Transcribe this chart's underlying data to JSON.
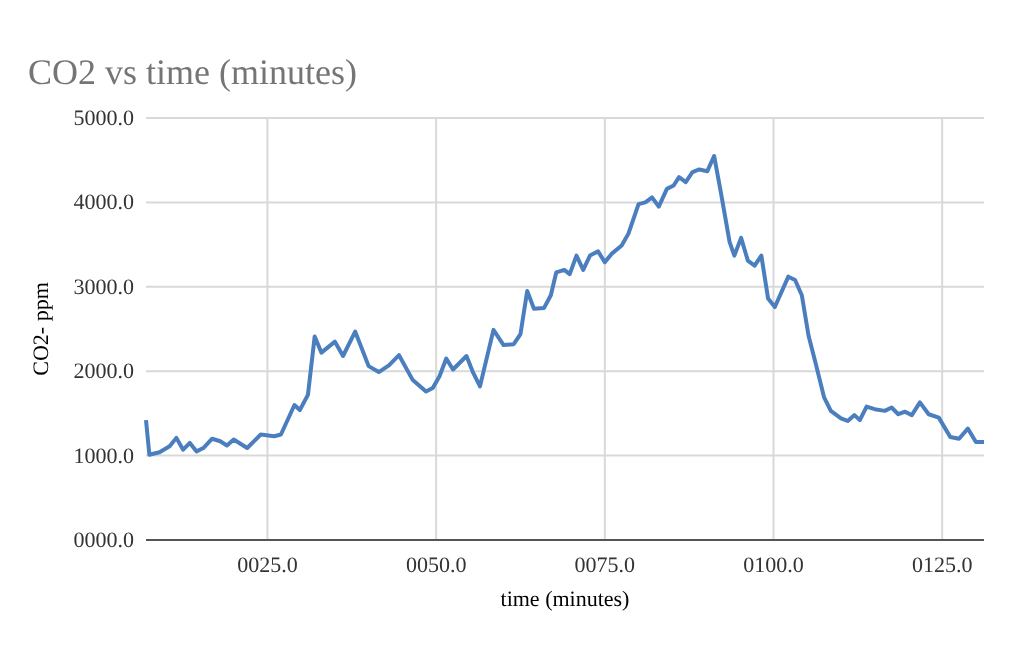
{
  "chart_data": {
    "type": "line",
    "title": "CO2 vs time (minutes)",
    "xlabel": "time (minutes)",
    "ylabel": "CO2- ppm",
    "x": [
      7,
      7.5,
      9,
      10.5,
      11.5,
      12.5,
      13.5,
      14.5,
      15.5,
      16.8,
      18,
      19,
      20,
      22,
      24,
      26,
      27,
      29,
      29.8,
      31,
      32,
      33,
      35,
      36.2,
      38,
      40,
      41.5,
      43,
      44.5,
      46.5,
      48.5,
      49.5,
      50.5,
      51.5,
      52.5,
      54.5,
      55.5,
      56.5,
      58.5,
      60,
      61.5,
      62.5,
      63.5,
      64.5,
      66,
      67,
      67.8,
      69,
      69.8,
      70.8,
      71.8,
      72.8,
      74,
      75,
      76,
      77.5,
      78.5,
      80,
      81,
      82,
      83,
      84.2,
      85.2,
      86,
      87,
      88,
      89,
      90.2,
      91.2,
      92.2,
      93.5,
      94.2,
      95.2,
      96.2,
      97.2,
      98.2,
      99.2,
      100.2,
      102.2,
      103.2,
      104.2,
      105.2,
      106.2,
      107.5,
      108.5,
      110,
      111,
      112,
      112.8,
      113.8,
      115,
      116.5,
      117.5,
      118.5,
      119.5,
      120.5,
      121.7,
      123,
      124.5,
      126.2,
      127.5,
      128.8,
      130,
      131.2
    ],
    "series": [
      {
        "color": "#4a7ebf",
        "values": [
          1420,
          1010,
          1040,
          1110,
          1210,
          1070,
          1150,
          1050,
          1090,
          1200,
          1170,
          1120,
          1190,
          1090,
          1250,
          1230,
          1250,
          1600,
          1540,
          1720,
          2410,
          2220,
          2350,
          2180,
          2470,
          2060,
          1990,
          2070,
          2190,
          1900,
          1760,
          1800,
          1940,
          2150,
          2020,
          2180,
          1980,
          1820,
          2490,
          2310,
          2320,
          2440,
          2950,
          2740,
          2750,
          2900,
          3170,
          3200,
          3150,
          3370,
          3200,
          3370,
          3420,
          3290,
          3390,
          3490,
          3630,
          3980,
          4000,
          4060,
          3950,
          4160,
          4200,
          4300,
          4240,
          4360,
          4390,
          4370,
          4550,
          4120,
          3530,
          3370,
          3580,
          3310,
          3250,
          3370,
          2860,
          2760,
          3120,
          3080,
          2900,
          2420,
          2110,
          1690,
          1530,
          1440,
          1410,
          1480,
          1420,
          1580,
          1550,
          1530,
          1570,
          1490,
          1520,
          1480,
          1630,
          1490,
          1450,
          1220,
          1200,
          1320,
          1160,
          1160
        ]
      }
    ],
    "xlim": [
      7,
      131.2
    ],
    "xticks": [
      {
        "value": 25,
        "label": "0025.0"
      },
      {
        "value": 50,
        "label": "0050.0"
      },
      {
        "value": 75,
        "label": "0075.0"
      },
      {
        "value": 100,
        "label": "0100.0"
      },
      {
        "value": 125,
        "label": "0125.0"
      }
    ],
    "ylim": [
      0,
      5000
    ],
    "yticks": [
      {
        "value": 0,
        "label": "0000.0"
      },
      {
        "value": 1000,
        "label": "1000.0"
      },
      {
        "value": 2000,
        "label": "2000.0"
      },
      {
        "value": 3000,
        "label": "3000.0"
      },
      {
        "value": 4000,
        "label": "4000.0"
      },
      {
        "value": 5000,
        "label": "5000.0"
      }
    ],
    "grid": true,
    "marker": "none",
    "line_style": "solid"
  }
}
